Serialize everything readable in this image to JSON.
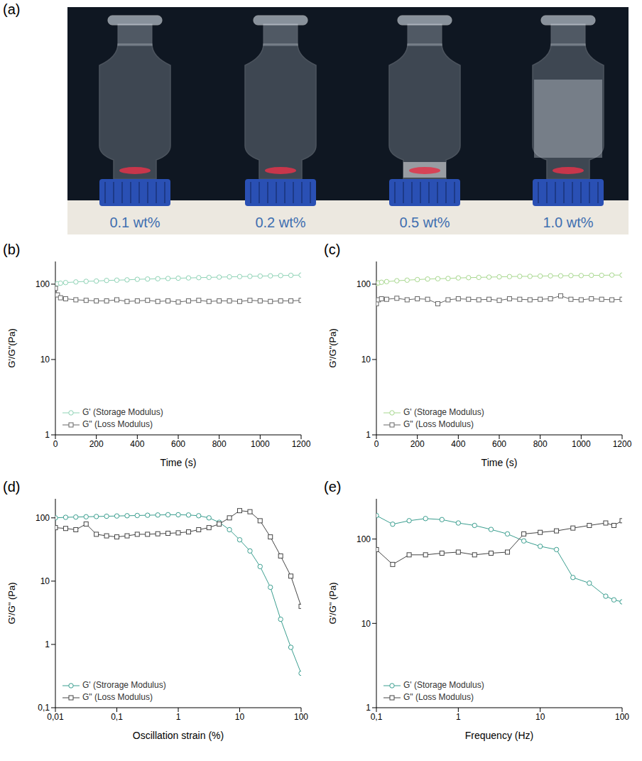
{
  "photo": {
    "panel_label": "(a)",
    "labels": [
      "0.1 wt%",
      "0.2 wt%",
      "0.5 wt%",
      "1.0 wt%"
    ]
  },
  "chart_data": [
    {
      "type": "line",
      "panel_label": "(b)",
      "x_label": "Time (s)",
      "y_label": "G'/G\"(Pa)",
      "log": "y",
      "grid": false,
      "legend": "lower left",
      "xlim": [
        0,
        1200
      ],
      "xticks": [
        0,
        200,
        400,
        600,
        800,
        1000,
        1200
      ],
      "ylim": [
        1,
        200
      ],
      "yticks": [
        1,
        10,
        100
      ],
      "x": [
        0,
        10,
        25,
        50,
        100,
        150,
        200,
        250,
        300,
        350,
        400,
        450,
        500,
        550,
        600,
        650,
        700,
        750,
        800,
        850,
        900,
        950,
        1000,
        1050,
        1100,
        1150,
        1200
      ],
      "series": [
        {
          "name": "G' (Storage Modulus)",
          "color": "#8fd3b6",
          "marker": "circle",
          "line_style": "solid",
          "values": [
            100,
            101,
            103,
            105,
            107,
            109,
            110,
            112,
            113,
            114,
            116,
            117,
            118,
            119,
            120,
            121,
            122,
            123,
            124,
            125,
            126,
            127,
            128,
            129,
            130,
            131,
            132
          ]
        },
        {
          "name": "G\" (Loss Modulus)",
          "color": "#666666",
          "marker": "square",
          "line_style": "solid",
          "values": [
            88,
            72,
            66,
            64,
            62,
            61,
            60,
            60,
            62,
            59,
            60,
            61,
            59,
            60,
            58,
            60,
            61,
            59,
            60,
            60,
            59,
            61,
            60,
            59,
            60,
            60,
            61
          ]
        }
      ]
    },
    {
      "type": "line",
      "panel_label": "(c)",
      "x_label": "Time (s)",
      "y_label": "G'/G\"(Pa)",
      "log": "y",
      "grid": false,
      "legend": "lower left",
      "xlim": [
        0,
        1200
      ],
      "xticks": [
        0,
        200,
        400,
        600,
        800,
        1000,
        1200
      ],
      "ylim": [
        1,
        200
      ],
      "yticks": [
        1,
        10,
        100
      ],
      "x": [
        0,
        10,
        25,
        50,
        100,
        150,
        200,
        250,
        300,
        350,
        400,
        450,
        500,
        550,
        600,
        650,
        700,
        750,
        800,
        850,
        900,
        950,
        1000,
        1050,
        1100,
        1150,
        1200
      ],
      "series": [
        {
          "name": "G' (Storage Modulus)",
          "color": "#a8d88f",
          "marker": "circle",
          "line_style": "solid",
          "values": [
            102,
            104,
            106,
            108,
            111,
            113,
            115,
            117,
            118,
            119,
            121,
            122,
            123,
            124,
            125,
            126,
            127,
            127,
            128,
            129,
            129,
            130,
            130,
            131,
            131,
            132,
            132
          ]
        },
        {
          "name": "G\" (Loss Modulus)",
          "color": "#666666",
          "marker": "square",
          "line_style": "solid",
          "values": [
            55,
            62,
            64,
            63,
            65,
            62,
            64,
            63,
            55,
            62,
            64,
            63,
            62,
            63,
            61,
            64,
            63,
            62,
            63,
            64,
            70,
            63,
            62,
            64,
            63,
            62,
            63
          ]
        }
      ]
    },
    {
      "type": "line",
      "panel_label": "(d)",
      "x_label": "Oscillation strain (%)",
      "y_label": "G'/G\" (Pa)",
      "log": true,
      "grid": false,
      "legend": "lower left",
      "xlim": [
        0.01,
        100
      ],
      "xticks": [
        {
          "value": 0.01,
          "label": "0,01"
        },
        {
          "value": 0.1,
          "label": "0,1"
        },
        1,
        10,
        100
      ],
      "ylim": [
        0.1,
        200
      ],
      "yticks": [
        {
          "value": 0.1,
          "label": "0,1"
        },
        1,
        10,
        100
      ],
      "x": [
        0.01,
        0.0147,
        0.0215,
        0.0316,
        0.0464,
        0.0681,
        0.1,
        0.147,
        0.215,
        0.316,
        0.464,
        0.681,
        1,
        1.47,
        2.15,
        3.16,
        4.64,
        6.81,
        10,
        14.7,
        21.5,
        31.6,
        46.4,
        68.1,
        100
      ],
      "series": [
        {
          "name": "G' (Strorage Modulus)",
          "color": "#3a9e8f",
          "marker": "circle",
          "line_style": "solid",
          "values": [
            100,
            102,
            103,
            104,
            105,
            106,
            107,
            108,
            109,
            110,
            111,
            112,
            112,
            111,
            108,
            100,
            85,
            65,
            45,
            30,
            17,
            8,
            2.5,
            0.9,
            0.35
          ]
        },
        {
          "name": "G\" (Loss Modulus)",
          "color": "#444444",
          "marker": "square",
          "line_style": "solid",
          "values": [
            70,
            68,
            65,
            80,
            55,
            52,
            50,
            52,
            55,
            55,
            56,
            57,
            58,
            60,
            65,
            70,
            80,
            100,
            130,
            125,
            90,
            50,
            25,
            12,
            4
          ]
        }
      ]
    },
    {
      "type": "line",
      "panel_label": "(e)",
      "x_label": "Frequency (Hz)",
      "y_label": "G'/G\" (Pa)",
      "log": true,
      "grid": false,
      "legend": "lower left",
      "xlim": [
        0.1,
        100
      ],
      "xticks": [
        {
          "value": 0.1,
          "label": "0,1"
        },
        1,
        10,
        100
      ],
      "ylim": [
        1,
        300
      ],
      "yticks": [
        1,
        10,
        100
      ],
      "x": [
        0.1,
        0.158,
        0.251,
        0.398,
        0.631,
        1,
        1.58,
        2.51,
        3.98,
        6.31,
        10,
        15.8,
        25.1,
        39.8,
        63.1,
        79.4,
        100
      ],
      "series": [
        {
          "name": "G' (Storage Modulus)",
          "color": "#3a9e8f",
          "marker": "circle",
          "line_style": "solid",
          "values": [
            190,
            150,
            165,
            175,
            170,
            155,
            145,
            130,
            115,
            95,
            82,
            75,
            35,
            30,
            21,
            19,
            18
          ]
        },
        {
          "name": "G\" (Loss Modulus)",
          "color": "#444444",
          "marker": "square",
          "line_style": "solid",
          "values": [
            75,
            50,
            65,
            65,
            68,
            70,
            65,
            68,
            70,
            115,
            120,
            125,
            135,
            145,
            155,
            145,
            165
          ]
        }
      ]
    }
  ]
}
